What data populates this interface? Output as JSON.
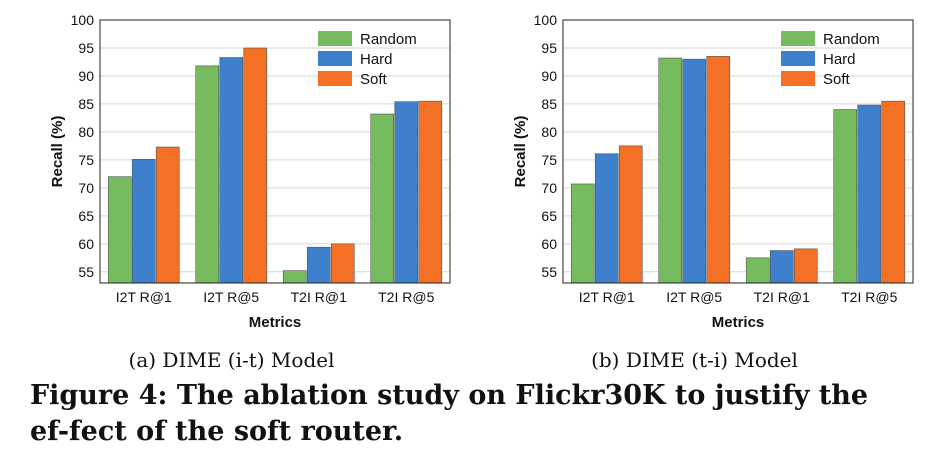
{
  "chart_data": [
    {
      "type": "bar",
      "title": "",
      "xlabel": "Metrics",
      "ylabel": "Recall (%)",
      "ylim": [
        53,
        100
      ],
      "yticks": [
        55,
        60,
        65,
        70,
        75,
        80,
        85,
        90,
        95,
        100
      ],
      "grid": "horizontal",
      "legend": "top-right",
      "categories": [
        "I2T R@1",
        "I2T R@5",
        "T2I R@1",
        "T2I R@5"
      ],
      "series": [
        {
          "name": "Random",
          "color": "#77bb5f",
          "values": [
            72.0,
            91.8,
            55.2,
            83.2
          ]
        },
        {
          "name": "Hard",
          "color": "#3f80cc",
          "values": [
            75.1,
            93.3,
            59.4,
            85.4
          ]
        },
        {
          "name": "Soft",
          "color": "#f37024",
          "values": [
            77.3,
            95.0,
            60.0,
            85.5
          ]
        }
      ]
    },
    {
      "type": "bar",
      "title": "",
      "xlabel": "Metrics",
      "ylabel": "Recall (%)",
      "ylim": [
        53,
        100
      ],
      "yticks": [
        55,
        60,
        65,
        70,
        75,
        80,
        85,
        90,
        95,
        100
      ],
      "grid": "horizontal",
      "legend": "top-right",
      "categories": [
        "I2T R@1",
        "I2T R@5",
        "T2I R@1",
        "T2I R@5"
      ],
      "series": [
        {
          "name": "Random",
          "color": "#77bb5f",
          "values": [
            70.7,
            93.2,
            57.5,
            84.0
          ]
        },
        {
          "name": "Hard",
          "color": "#3f80cc",
          "values": [
            76.1,
            93.0,
            58.8,
            84.8
          ]
        },
        {
          "name": "Soft",
          "color": "#f37024",
          "values": [
            77.5,
            93.5,
            59.1,
            85.5
          ]
        }
      ]
    }
  ],
  "captions": {
    "panel_a": "(a)  DIME (i-t) Model",
    "panel_b": "(b)  DIME (t-i) Model",
    "figure": "Figure 4: The ablation study on Flickr30K to justify the ef-fect of the soft router."
  }
}
